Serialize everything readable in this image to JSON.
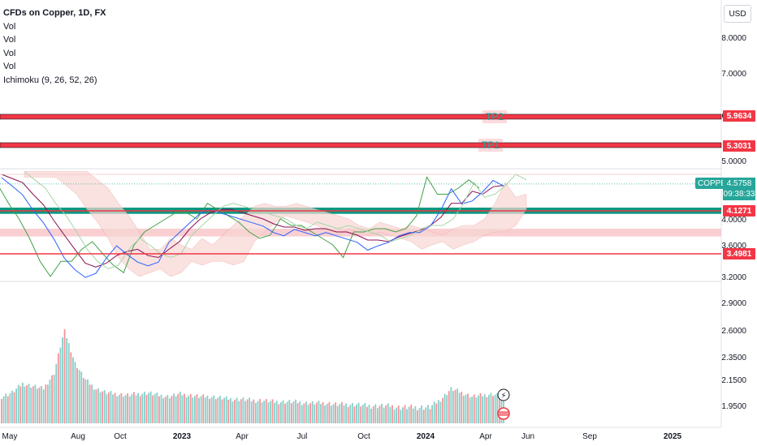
{
  "header": {
    "title": "CFDs on Copper, 1D, FX",
    "indicators": [
      "Vol",
      "Vol",
      "Vol",
      "Vol",
      "Ichimoku (9, 26, 52, 26)"
    ],
    "currency": "USD"
  },
  "symbol": "COPPER",
  "current_price": {
    "value": "4.5758",
    "countdown": "09:38:33"
  },
  "levels": [
    {
      "price": 5.9634,
      "label": "5.9634",
      "color": "#f23645",
      "annotation": "TP2"
    },
    {
      "price": 5.3031,
      "label": "5.3031",
      "color": "#f23645",
      "annotation": "TP1"
    },
    {
      "price": 4.1271,
      "label": "4.1271",
      "color": "#f23645",
      "annotation": ""
    },
    {
      "price": 3.4981,
      "label": "3.4981",
      "color": "#f23645",
      "annotation": ""
    }
  ],
  "colors": {
    "up": "#26a69a",
    "down": "#f23645",
    "zone_green": "#089981",
    "zone_red": "#f7c3c7",
    "cloud": "#f7d7d3"
  },
  "chart_data": {
    "type": "line",
    "title": "CFDs on Copper, 1D, FX",
    "y_ticks": [
      "8.0000",
      "7.0000",
      "6.0000",
      "5.0000",
      "4.0000",
      "3.6000",
      "3.2000",
      "2.9000",
      "2.6000",
      "2.3500",
      "2.1500",
      "1.9500"
    ],
    "x_ticks": [
      "May",
      "Aug",
      "Oct",
      "2023",
      "Apr",
      "Jul",
      "Oct",
      "2024",
      "Apr",
      "Jun",
      "Sep",
      "2025"
    ],
    "x_range": [
      "2022-05",
      "2025-03"
    ],
    "zones": [
      {
        "name": "support-green",
        "from": 4.08,
        "to": 4.18
      },
      {
        "name": "support-red",
        "from": 3.73,
        "to": 3.85
      }
    ],
    "series": [
      {
        "values": [
          4.75,
          4.6,
          4.45,
          4.2,
          4.0,
          3.75,
          3.5,
          3.35,
          3.25,
          3.3,
          3.5,
          3.65,
          3.55,
          3.45,
          3.4,
          3.45,
          3.7,
          3.85,
          4.0,
          4.15,
          4.2,
          4.15,
          4.1,
          4.05,
          4.0,
          3.95,
          3.85,
          3.8,
          3.9,
          3.85,
          3.8,
          3.85,
          3.8,
          3.75,
          3.7,
          3.6,
          3.65,
          3.7,
          3.8,
          3.85,
          3.85,
          3.95,
          4.2,
          4.55,
          4.3,
          4.35,
          4.5,
          4.7,
          4.6
        ]
      }
    ],
    "volume": [
      2.02,
      2.05,
      2.12,
      2.1,
      2.08,
      2.2,
      2.6,
      2.3,
      2.15,
      2.08,
      2.05,
      2.04,
      2.03,
      2.04,
      2.05,
      2.03,
      2.02,
      2.04,
      2.03,
      2.02,
      2.02,
      2.01,
      2.0,
      2.0,
      1.99,
      1.99,
      1.98,
      1.98,
      1.98,
      1.97,
      1.97,
      1.97,
      1.96,
      1.96,
      1.96,
      1.95,
      1.95,
      1.95,
      1.94,
      1.94,
      1.94,
      1.94,
      2.0,
      2.08,
      2.05,
      2.02,
      2.03,
      2.04,
      2.02
    ]
  }
}
